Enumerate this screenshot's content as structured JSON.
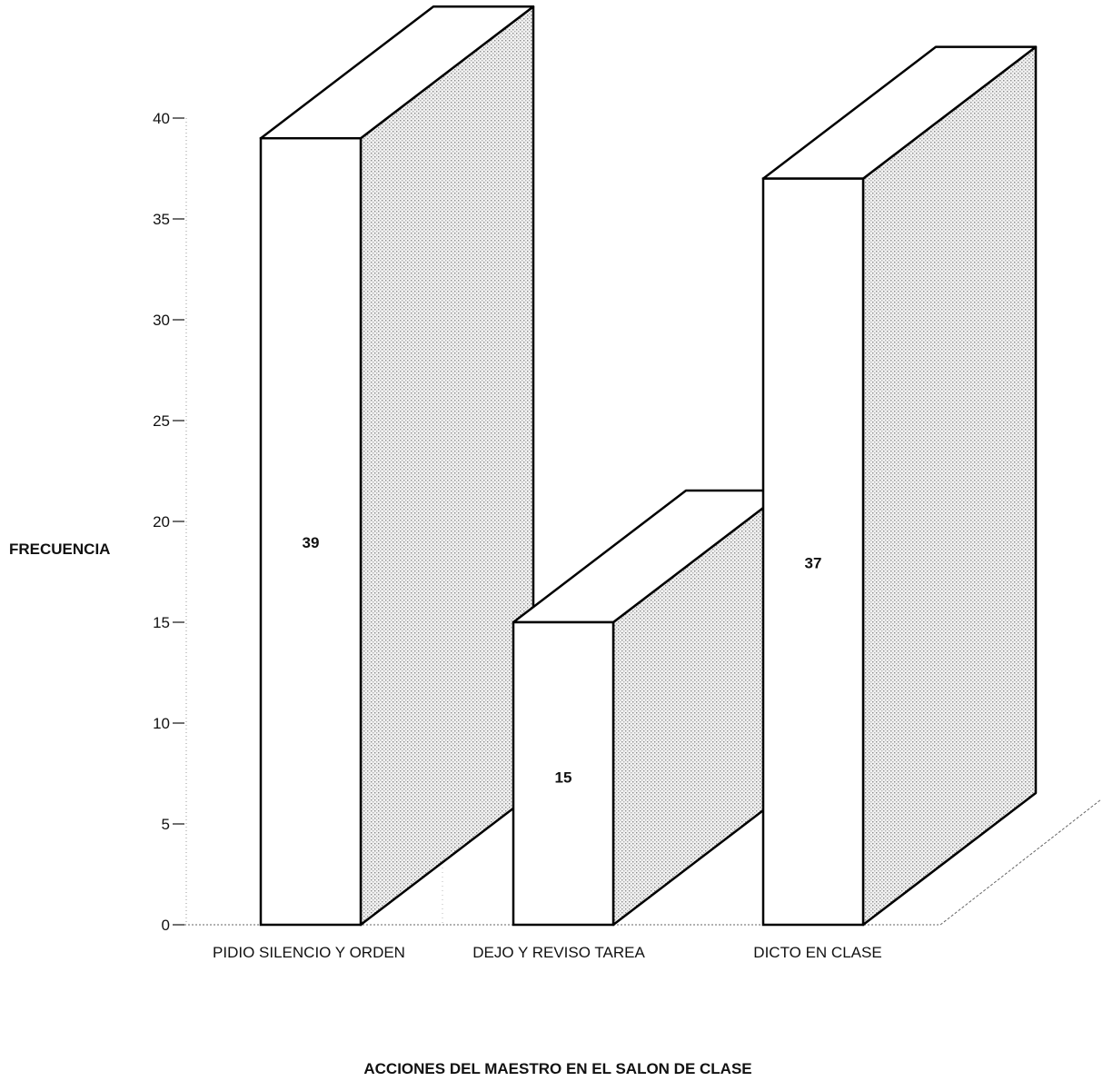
{
  "chart_data": {
    "type": "bar",
    "style": "3d",
    "categories": [
      "PIDIO SILENCIO Y ORDEN",
      "DEJO Y REVISO TAREA",
      "DICTO EN CLASE"
    ],
    "values": [
      39,
      15,
      37
    ],
    "data_labels": [
      "39",
      "15",
      "37"
    ],
    "title": "",
    "xlabel": "ACCIONES DEL MAESTRO EN EL SALON DE CLASE",
    "ylabel": "FRECUENCIA",
    "ylim": [
      0,
      40
    ],
    "yticks": [
      "0",
      "5",
      "10",
      "15",
      "20",
      "25",
      "30",
      "35",
      "40"
    ],
    "grid": false,
    "legend": "none",
    "colors": {
      "bar_front": "#ffffff",
      "bar_side": "#e2e2e2",
      "outline": "#000000"
    }
  }
}
